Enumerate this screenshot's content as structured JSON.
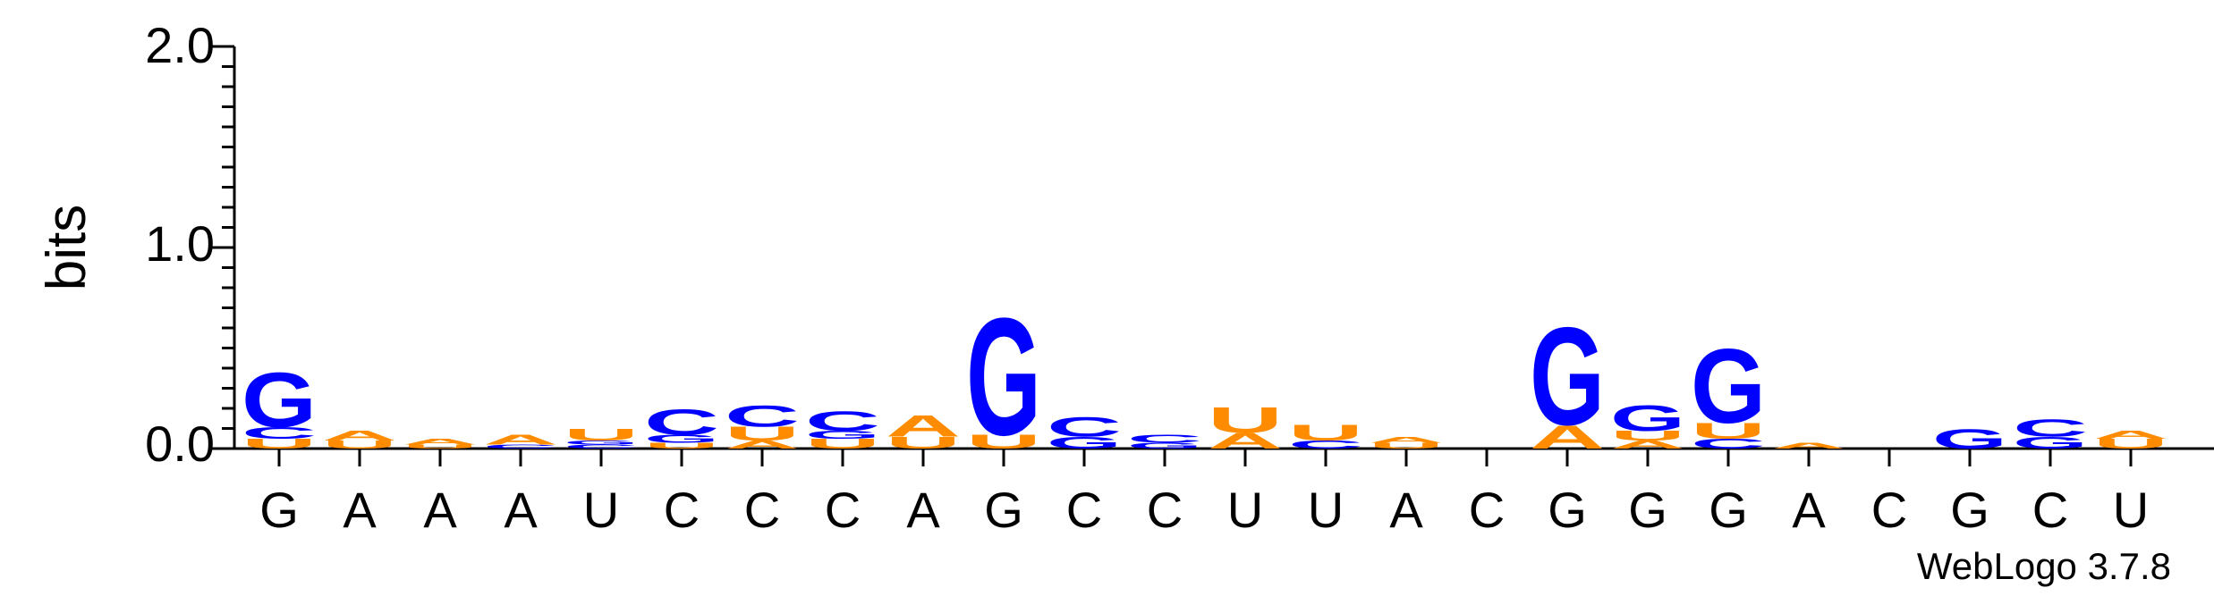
{
  "chart_data": {
    "type": "sequence-logo",
    "ylabel": "bits",
    "ylim": [
      0,
      2.0
    ],
    "yticks": [
      "0.0",
      "1.0",
      "2.0"
    ],
    "positions": [
      "G",
      "A",
      "A",
      "A",
      "U",
      "C",
      "C",
      "C",
      "A",
      "G",
      "C",
      "C",
      "U",
      "U",
      "A",
      "C",
      "G",
      "G",
      "G",
      "A",
      "C",
      "G",
      "C",
      "U"
    ],
    "letters": [
      [
        {
          "l": "U",
          "h": 0.05
        },
        {
          "l": "C",
          "h": 0.06
        },
        {
          "l": "G",
          "h": 0.28
        }
      ],
      [
        {
          "l": "U",
          "h": 0.04
        },
        {
          "l": "A",
          "h": 0.05
        }
      ],
      [
        {
          "l": "U",
          "h": 0.02
        },
        {
          "l": "A",
          "h": 0.03
        }
      ],
      [
        {
          "l": "C",
          "h": 0.02
        },
        {
          "l": "A",
          "h": 0.05
        }
      ],
      [
        {
          "l": "C",
          "h": 0.02
        },
        {
          "l": "G",
          "h": 0.02
        },
        {
          "l": "U",
          "h": 0.06
        }
      ],
      [
        {
          "l": "U",
          "h": 0.03
        },
        {
          "l": "G",
          "h": 0.04
        },
        {
          "l": "C",
          "h": 0.13
        }
      ],
      [
        {
          "l": "A",
          "h": 0.04
        },
        {
          "l": "U",
          "h": 0.07
        },
        {
          "l": "C",
          "h": 0.11
        }
      ],
      [
        {
          "l": "U",
          "h": 0.05
        },
        {
          "l": "G",
          "h": 0.04
        },
        {
          "l": "C",
          "h": 0.1
        }
      ],
      [
        {
          "l": "U",
          "h": 0.06
        },
        {
          "l": "A",
          "h": 0.11
        }
      ],
      [
        {
          "l": "U",
          "h": 0.07
        },
        {
          "l": "G",
          "h": 0.6
        }
      ],
      [
        {
          "l": "G",
          "h": 0.06
        },
        {
          "l": "C",
          "h": 0.1
        }
      ],
      [
        {
          "l": "G",
          "h": 0.03
        },
        {
          "l": "C",
          "h": 0.04
        }
      ],
      [
        {
          "l": "A",
          "h": 0.08
        },
        {
          "l": "U",
          "h": 0.13
        }
      ],
      [
        {
          "l": "C",
          "h": 0.04
        },
        {
          "l": "U",
          "h": 0.08
        }
      ],
      [
        {
          "l": "U",
          "h": 0.03
        },
        {
          "l": "A",
          "h": 0.03
        }
      ],
      [],
      [
        {
          "l": "A",
          "h": 0.12
        },
        {
          "l": "G",
          "h": 0.5
        }
      ],
      [
        {
          "l": "A",
          "h": 0.04
        },
        {
          "l": "U",
          "h": 0.05
        },
        {
          "l": "G",
          "h": 0.13
        }
      ],
      [
        {
          "l": "C",
          "h": 0.05
        },
        {
          "l": "U",
          "h": 0.08
        },
        {
          "l": "G",
          "h": 0.38
        }
      ],
      [
        {
          "l": "A",
          "h": 0.03
        }
      ],
      [],
      [
        {
          "l": "G",
          "h": 0.1
        }
      ],
      [
        {
          "l": "G",
          "h": 0.06
        },
        {
          "l": "C",
          "h": 0.09
        }
      ],
      [
        {
          "l": "U",
          "h": 0.05
        },
        {
          "l": "A",
          "h": 0.04
        }
      ]
    ],
    "colors": {
      "A": "#ff8c00",
      "U": "#ff8c00",
      "G": "#0000ff",
      "C": "#0000ff",
      "axis": "#000000"
    },
    "credit": "WebLogo 3.7.8"
  }
}
